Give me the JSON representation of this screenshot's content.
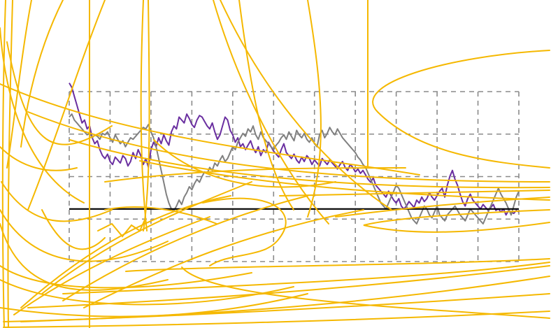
{
  "chart_data": {
    "type": "line",
    "title": "",
    "xlabel": "",
    "ylabel": "",
    "grid": true,
    "legend": "none",
    "x_divisions": 11,
    "y_divisions": 4,
    "series": [
      {
        "color": "#6a2fa0",
        "values": [
          95,
          92,
          86,
          80,
          74,
          68,
          70,
          64,
          66,
          58,
          54,
          56,
          50,
          46,
          44,
          47,
          42,
          40,
          45,
          43,
          41,
          46,
          44,
          39,
          42,
          48,
          44,
          50,
          46,
          40,
          44,
          38,
          50,
          55,
          52,
          58,
          54,
          60,
          56,
          53,
          62,
          66,
          64,
          72,
          70,
          68,
          74,
          71,
          67,
          65,
          70,
          73,
          72,
          69,
          66,
          64,
          68,
          62,
          57,
          60,
          66,
          72,
          70,
          63,
          60,
          55,
          58,
          52,
          54,
          50,
          53,
          56,
          51,
          48,
          52,
          46,
          50,
          48,
          55,
          52,
          49,
          47,
          45,
          50,
          54,
          48,
          46,
          44,
          47,
          43,
          41,
          45,
          42,
          46,
          44,
          40,
          43,
          41,
          39,
          44,
          42,
          40,
          43,
          41,
          39,
          37,
          40,
          42,
          38,
          36,
          40,
          38,
          35,
          37,
          34,
          36,
          33,
          30,
          28,
          31,
          26,
          24,
          22,
          20,
          18,
          22,
          19,
          16,
          14,
          17,
          12,
          10,
          12,
          15,
          13,
          11,
          16,
          14,
          18,
          15,
          17,
          21,
          18,
          16,
          19,
          22,
          24,
          18,
          26,
          32,
          36,
          30,
          26,
          20,
          15,
          12,
          17,
          20,
          16,
          14,
          12,
          10,
          13,
          11,
          9,
          11,
          13,
          9,
          10,
          8,
          10,
          6,
          9,
          8,
          7,
          9,
          8
        ]
      },
      {
        "color": "#808080",
        "values": [
          72,
          74,
          70,
          68,
          66,
          64,
          62,
          60,
          61,
          58,
          60,
          59,
          57,
          61,
          60,
          62,
          58,
          55,
          60,
          57,
          54,
          56,
          52,
          55,
          58,
          57,
          59,
          61,
          63,
          65,
          64,
          67,
          62,
          58,
          52,
          44,
          36,
          28,
          20,
          14,
          10,
          9,
          12,
          16,
          13,
          18,
          21,
          25,
          23,
          27,
          30,
          28,
          32,
          35,
          34,
          38,
          36,
          41,
          39,
          43,
          46,
          42,
          44,
          48,
          52,
          50,
          55,
          58,
          61,
          59,
          64,
          62,
          66,
          60,
          57,
          62,
          58,
          56,
          54,
          52,
          50,
          53,
          55,
          58,
          60,
          57,
          62,
          59,
          56,
          63,
          60,
          58,
          61,
          57,
          55,
          58,
          54,
          52,
          60,
          63,
          58,
          61,
          65,
          62,
          60,
          64,
          61,
          58,
          56,
          54,
          52,
          50,
          48,
          45,
          43,
          40,
          38,
          34,
          30,
          26,
          22,
          18,
          14,
          12,
          10,
          14,
          18,
          22,
          26,
          24,
          20,
          16,
          12,
          8,
          4,
          2,
          0,
          4,
          8,
          12,
          10,
          6,
          4,
          8,
          12,
          6,
          4,
          2,
          6,
          8,
          10,
          12,
          9,
          6,
          4,
          2,
          6,
          10,
          8,
          6,
          4,
          2,
          0,
          4,
          8,
          12,
          16,
          20,
          24,
          20,
          17,
          14,
          10,
          6,
          12,
          18,
          22
        ]
      },
      {
        "color": "#000000",
        "values": [
          10,
          10
        ]
      }
    ]
  },
  "overlay": {
    "color": "#f5b800",
    "stroke_count": 48
  }
}
